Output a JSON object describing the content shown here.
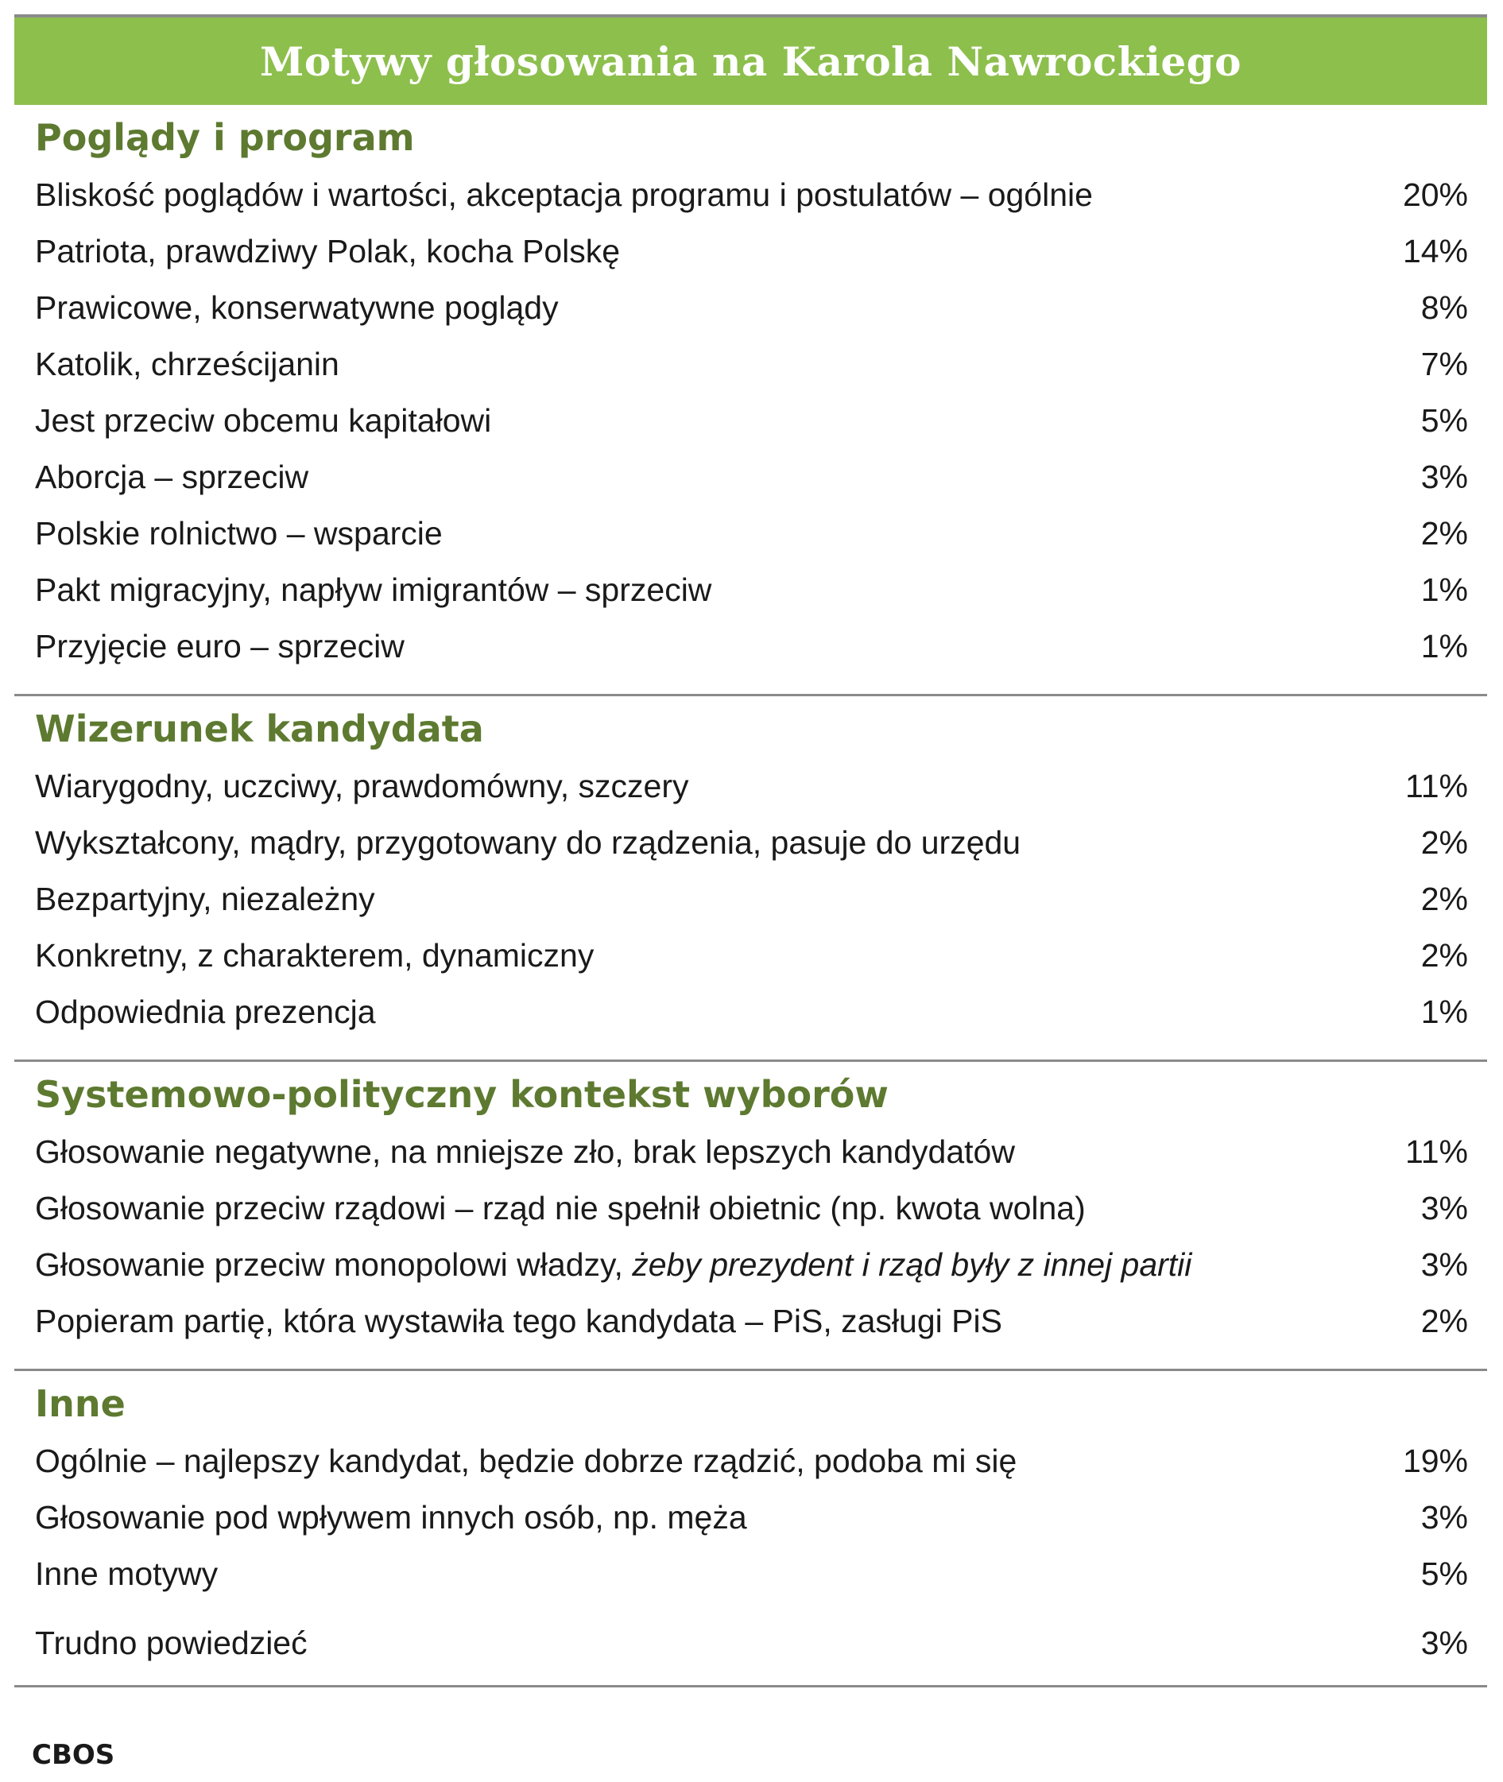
{
  "chart_data": {
    "type": "table",
    "title": "Motywy głosowania na Karola Nawrockiego",
    "source": "CBOS",
    "sections": [
      {
        "heading": "Poglądy i program",
        "rows": [
          {
            "label": "Bliskość poglądów i wartości, akceptacja programu i postulatów – ogólnie",
            "value": "20%"
          },
          {
            "label": "Patriota, prawdziwy Polak, kocha Polskę",
            "value": "14%"
          },
          {
            "label": "Prawicowe, konserwatywne poglądy",
            "value": "8%"
          },
          {
            "label": "Katolik, chrześcijanin",
            "value": "7%"
          },
          {
            "label": "Jest przeciw obcemu kapitałowi",
            "value": "5%"
          },
          {
            "label": "Aborcja – sprzeciw",
            "value": "3%"
          },
          {
            "label": "Polskie rolnictwo – wsparcie",
            "value": "2%"
          },
          {
            "label": "Pakt migracyjny, napływ imigrantów – sprzeciw",
            "value": "1%"
          },
          {
            "label": "Przyjęcie euro – sprzeciw",
            "value": "1%"
          }
        ]
      },
      {
        "heading": "Wizerunek kandydata",
        "rows": [
          {
            "label": "Wiarygodny, uczciwy, prawdomówny, szczery",
            "value": "11%"
          },
          {
            "label": "Wykształcony, mądry, przygotowany do rządzenia, pasuje do urzędu",
            "value": "2%"
          },
          {
            "label": "Bezpartyjny, niezależny",
            "value": "2%"
          },
          {
            "label": "Konkretny, z charakterem, dynamiczny",
            "value": "2%"
          },
          {
            "label": "Odpowiednia prezencja",
            "value": "1%"
          }
        ]
      },
      {
        "heading": "Systemowo-polityczny kontekst wyborów",
        "rows": [
          {
            "label": "Głosowanie negatywne, na mniejsze zło, brak lepszych kandydatów",
            "value": "11%"
          },
          {
            "label": "Głosowanie przeciw rządowi – rząd nie spełnił obietnic (np. kwota wolna)",
            "value": "3%"
          },
          {
            "label": "Głosowanie przeciw monopolowi władzy, ",
            "label_italic": "żeby prezydent i rząd były z innej partii",
            "value": "3%"
          },
          {
            "label": "Popieram partię, która wystawiła tego kandydata – PiS, zasługi PiS",
            "value": "2%"
          }
        ]
      },
      {
        "heading": "Inne",
        "rows": [
          {
            "label": "Ogólnie – najlepszy kandydat, będzie dobrze rządzić, podoba mi się",
            "value": "19%"
          },
          {
            "label": "Głosowanie pod wpływem innych osób, np. męża",
            "value": "3%"
          },
          {
            "label": "Inne motywy",
            "value": "5%"
          },
          {
            "label": "Trudno powiedzieć",
            "value": "3%"
          }
        ]
      }
    ]
  },
  "colors": {
    "title_bar": "#8dbf4d",
    "heading": "#5d7a30",
    "rule": "#8a8a8a"
  }
}
